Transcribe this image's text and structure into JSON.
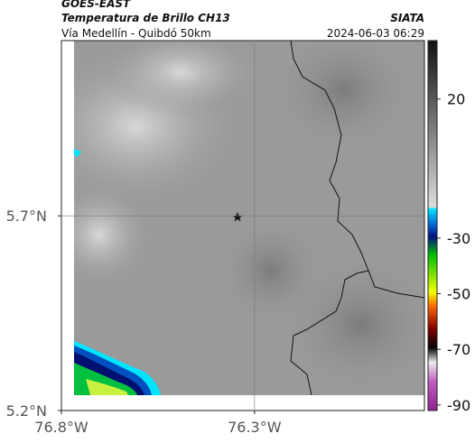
{
  "header": {
    "product": "GOES-EAST",
    "channel": "Temperatura de Brillo CH13",
    "source": "SIATA",
    "route": "Vía Medellín - Quibdó 50km",
    "timestamp": "2024-06-03 06:29"
  },
  "map": {
    "xlim": [
      -76.8,
      -75.86
    ],
    "ylim": [
      5.2,
      6.15
    ],
    "xticks": [
      {
        "value": -76.8,
        "label": "76.8°W"
      },
      {
        "value": -76.3,
        "label": "76.3°W"
      }
    ],
    "yticks": [
      {
        "value": 5.7,
        "label": "5.7°N"
      },
      {
        "value": 5.2,
        "label": "5.2°N"
      }
    ],
    "grid": true
  },
  "colorbar": {
    "lim": [
      41,
      -92
    ],
    "ticks": [
      20,
      -30,
      -50,
      -70,
      -90
    ]
  }
}
